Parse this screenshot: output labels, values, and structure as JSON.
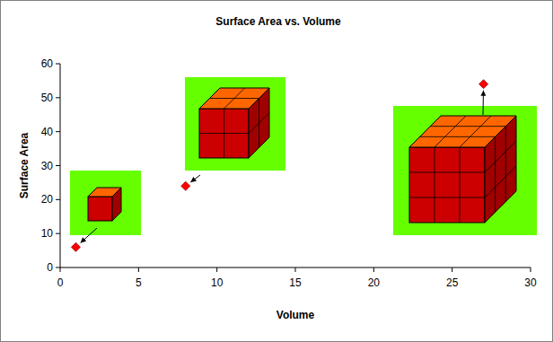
{
  "chart_data": {
    "type": "scatter",
    "title": "Surface Area vs. Volume",
    "x_label": "Volume",
    "y_label": "Surface Area",
    "x": [
      1,
      8,
      27
    ],
    "values": [
      6,
      24,
      54
    ],
    "color": "#ff0000",
    "marker": "diamond",
    "xlim": [
      0,
      30
    ],
    "xticks": [
      0,
      5,
      10,
      15,
      20,
      25,
      30
    ],
    "ylim": [
      0,
      60
    ],
    "yticks": [
      0,
      10,
      20,
      30,
      40,
      50,
      60
    ],
    "grid": false
  }
}
